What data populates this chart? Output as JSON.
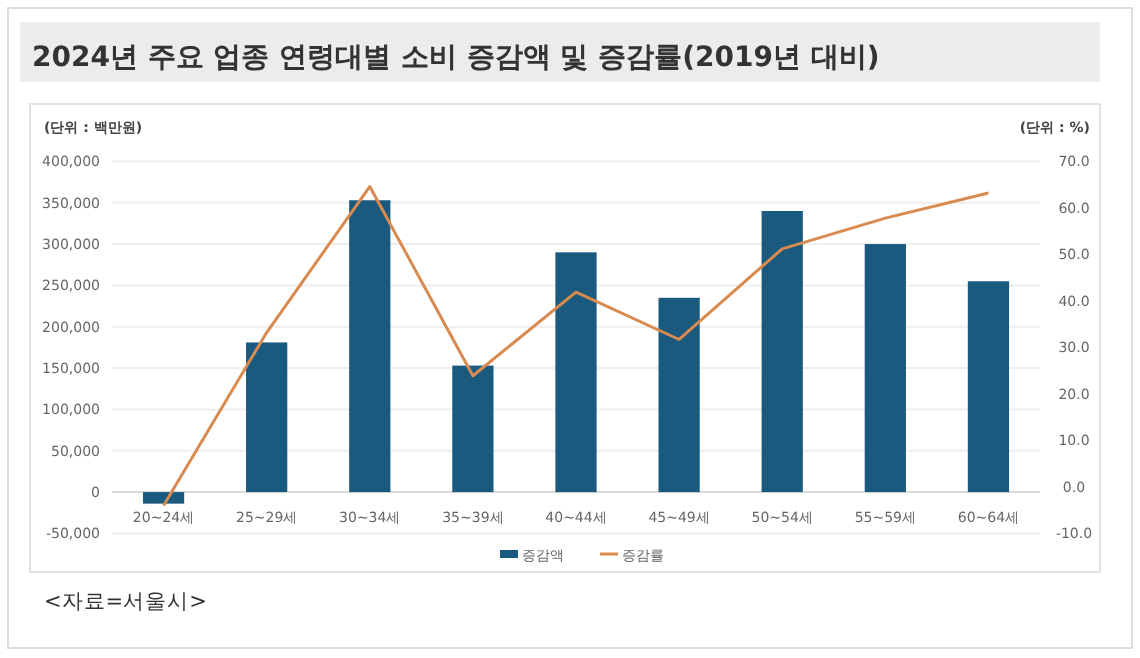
{
  "chart_data": {
    "type": "bar",
    "title": "2024년 주요 업종 연령대별 소비 증감액 및 증감률(2019년 대비)",
    "ylabel": "(단위 : 백만원)",
    "y2label": "(단위 : %)",
    "annotations": [
      "<자료=서울시>"
    ],
    "categories": [
      "20~24세",
      "25~29세",
      "30~34세",
      "35~39세",
      "40~44세",
      "45~49세",
      "50~54세",
      "55~59세",
      "60~64세"
    ],
    "series": [
      {
        "name": "증감액",
        "color": "#1a5a7e",
        "values": [
          -14000,
          181000,
          353000,
          153000,
          290000,
          235000,
          340000,
          300000,
          255000
        ]
      },
      {
        "name": "증감률",
        "type": "line",
        "axis": "y2",
        "color": "#d88a4f",
        "values": [
          -4,
          33.2,
          64.6,
          23.9,
          41.9,
          31.7,
          51.2,
          57.8,
          63.2
        ]
      }
    ],
    "ylim": [
      -50000,
      400000
    ],
    "yticks": [
      {
        "value": -50000,
        "label": "-50,000"
      },
      0,
      {
        "value": 50000,
        "label": "50,000"
      },
      {
        "value": 100000,
        "label": "100,000"
      },
      {
        "value": 150000,
        "label": "150,000"
      },
      {
        "value": 200000,
        "label": "200,000"
      },
      {
        "value": 250000,
        "label": "250,000"
      },
      {
        "value": 300000,
        "label": "300,000"
      },
      {
        "value": 350000,
        "label": "350,000"
      },
      {
        "value": 400000,
        "label": "400,000"
      }
    ],
    "y2lim": [
      -10,
      70
    ],
    "y2ticks": [
      {
        "value": -10,
        "label": "-10.0"
      },
      {
        "value": 0,
        "label": "0.0"
      },
      {
        "value": 10,
        "label": "10.0"
      },
      {
        "value": 20,
        "label": "20.0"
      },
      {
        "value": 30,
        "label": "30.0"
      },
      {
        "value": 40,
        "label": "40.0"
      },
      {
        "value": 50,
        "label": "50.0"
      },
      {
        "value": 60,
        "label": "60.0"
      },
      {
        "value": 70,
        "label": "70.0"
      }
    ],
    "grid": "y",
    "legend": "bottom"
  }
}
